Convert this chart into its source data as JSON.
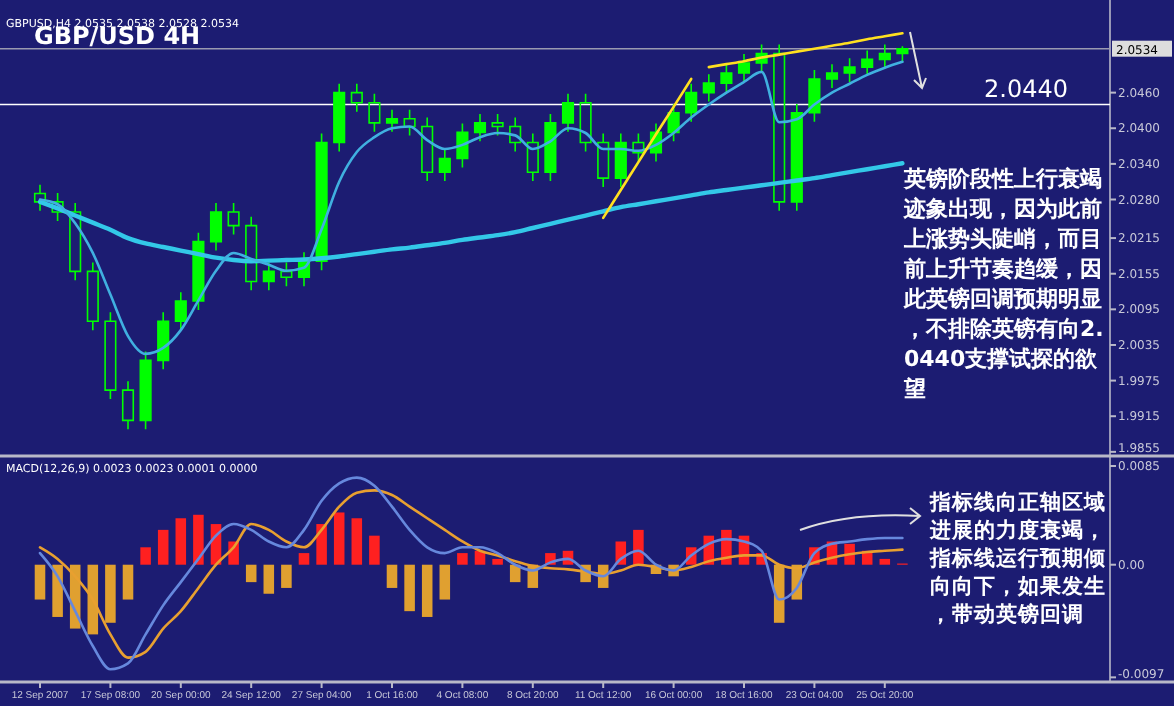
{
  "chart_data": [
    {
      "type": "candlestick",
      "title": "GBP/USD 4H",
      "annotations": [
        "GBPUSD,H4 2.0535 2.0538 2.0528 2.0534",
        "英镑阶段性上行衰竭迹象出现，因为此前上涨势头陡峭，而目前上升节奏趋缓，因此英镑回调预期明显，不排除英镑有向2.0440支撑试探的欲望"
      ],
      "categories": [
        null,
        null,
        null,
        null,
        null,
        null,
        null,
        null,
        null,
        null,
        null,
        null,
        null,
        null,
        null,
        null,
        null,
        null,
        null,
        null,
        null,
        null,
        null,
        null,
        null,
        null,
        null,
        null,
        null,
        null,
        null,
        null,
        null,
        null,
        null,
        null,
        null,
        null,
        null,
        null,
        null,
        null,
        null,
        null,
        null,
        null,
        null,
        null,
        null,
        null
      ],
      "color": "#00ff00",
      "ohlc": [
        [
          2.029,
          2.0305,
          2.0261,
          2.0276
        ],
        [
          2.0276,
          2.0291,
          2.0244,
          2.0259
        ],
        [
          2.0259,
          2.0274,
          2.0144,
          2.0159
        ],
        [
          2.0159,
          2.0174,
          2.006,
          2.0075
        ],
        [
          2.0075,
          2.009,
          1.9944,
          1.9959
        ],
        [
          1.9959,
          1.9974,
          1.9893,
          1.9908
        ],
        [
          1.9908,
          2.0024,
          1.9893,
          2.0009
        ],
        [
          2.0009,
          2.009,
          1.9994,
          2.0075
        ],
        [
          2.0075,
          2.0124,
          2.006,
          2.0109
        ],
        [
          2.0109,
          2.0224,
          2.0094,
          2.0209
        ],
        [
          2.0209,
          2.0274,
          2.0194,
          2.0259
        ],
        [
          2.0259,
          2.0274,
          2.0221,
          2.0236
        ],
        [
          2.0236,
          2.0251,
          2.0127,
          2.0142
        ],
        [
          2.0142,
          2.0174,
          2.0127,
          2.0159
        ],
        [
          2.0159,
          2.0174,
          2.0134,
          2.0149
        ],
        [
          2.0149,
          2.0191,
          2.0134,
          2.0176
        ],
        [
          2.0176,
          2.0391,
          2.0161,
          2.0376
        ],
        [
          2.0376,
          2.0475,
          2.0361,
          2.046
        ],
        [
          2.046,
          2.0475,
          2.0428,
          2.0443
        ],
        [
          2.0443,
          2.0458,
          2.0394,
          2.0409
        ],
        [
          2.0409,
          2.0431,
          2.0394,
          2.0416
        ],
        [
          2.0416,
          2.0431,
          2.0388,
          2.0403
        ],
        [
          2.0403,
          2.0418,
          2.0311,
          2.0326
        ],
        [
          2.0326,
          2.0364,
          2.0311,
          2.0349
        ],
        [
          2.0349,
          2.0408,
          2.0334,
          2.0393
        ],
        [
          2.0393,
          2.0424,
          2.0378,
          2.0409
        ],
        [
          2.0409,
          2.0424,
          2.0388,
          2.0403
        ],
        [
          2.0403,
          2.0418,
          2.0361,
          2.0376
        ],
        [
          2.0376,
          2.0391,
          2.0311,
          2.0326
        ],
        [
          2.0326,
          2.0424,
          2.0311,
          2.0409
        ],
        [
          2.0409,
          2.0458,
          2.0394,
          2.0443
        ],
        [
          2.0443,
          2.0458,
          2.0361,
          2.0376
        ],
        [
          2.0376,
          2.0391,
          2.0301,
          2.0316
        ],
        [
          2.0316,
          2.0391,
          2.0301,
          2.0376
        ],
        [
          2.0376,
          2.0391,
          2.0344,
          2.0359
        ],
        [
          2.0359,
          2.0408,
          2.0344,
          2.0393
        ],
        [
          2.0393,
          2.0441,
          2.0378,
          2.0426
        ],
        [
          2.0426,
          2.0475,
          2.0411,
          2.046
        ],
        [
          2.046,
          2.0491,
          2.0445,
          2.0476
        ],
        [
          2.0476,
          2.0508,
          2.0461,
          2.0493
        ],
        [
          2.0493,
          2.0525,
          2.0478,
          2.051
        ],
        [
          2.051,
          2.0541,
          2.0495,
          2.0526
        ],
        [
          2.0526,
          2.0541,
          2.0261,
          2.0276
        ],
        [
          2.0276,
          2.0441,
          2.0261,
          2.0426
        ],
        [
          2.0426,
          2.0498,
          2.0411,
          2.0483
        ],
        [
          2.0483,
          2.0508,
          2.0468,
          2.0493
        ],
        [
          2.0493,
          2.0518,
          2.0478,
          2.0503
        ],
        [
          2.0503,
          2.0531,
          2.0488,
          2.0516
        ],
        [
          2.0516,
          2.0541,
          2.0501,
          2.0526
        ],
        [
          2.0526,
          2.0538,
          2.0511,
          2.0534
        ]
      ],
      "series": [
        {
          "type": "line",
          "color": "#33c8e8",
          "values": [
            2.0276,
            2.0265,
            2.0253,
            2.0241,
            2.0229,
            2.0215,
            2.0206,
            2.02,
            2.0194,
            2.0188,
            2.0182,
            2.0178,
            2.0176,
            2.0177,
            2.0178,
            2.0179,
            2.0181,
            2.0184,
            2.0188,
            2.0192,
            2.0196,
            2.0199,
            2.0203,
            2.0207,
            2.0212,
            2.0216,
            2.022,
            2.0225,
            2.0232,
            2.0239,
            2.0246,
            2.0253,
            2.026,
            2.0267,
            2.0272,
            2.0277,
            2.0282,
            2.0287,
            2.0292,
            2.0296,
            2.03,
            2.0304,
            2.0308,
            2.0312,
            2.0316,
            2.0321,
            2.0326,
            2.0331,
            2.0336,
            2.0341
          ]
        },
        {
          "type": "line",
          "color": "#40b0e0",
          "values": [
            2.028,
            2.0272,
            2.024,
            2.019,
            2.012,
            2.005,
            2.002,
            2.003,
            2.006,
            2.011,
            2.016,
            2.019,
            2.018,
            2.017,
            2.016,
            2.0165,
            2.023,
            2.031,
            2.036,
            2.0385,
            2.04,
            2.0403,
            2.038,
            2.0365,
            2.0372,
            2.0385,
            2.0392,
            2.0388,
            2.0365,
            2.0378,
            2.04,
            2.0392,
            2.0365,
            2.0365,
            2.0362,
            2.0372,
            2.0392,
            2.0418,
            2.044,
            2.046,
            2.0478,
            2.0495,
            2.041,
            2.0415,
            2.044,
            2.046,
            2.0475,
            2.049,
            2.0502,
            2.0512
          ]
        },
        {
          "type": "line",
          "color": "#ffe020",
          "values": [
            null,
            null,
            null,
            null,
            null,
            null,
            null,
            null,
            null,
            null,
            null,
            null,
            null,
            null,
            null,
            null,
            null,
            null,
            null,
            null,
            null,
            null,
            null,
            null,
            null,
            null,
            null,
            null,
            null,
            null,
            null,
            null,
            2.0249,
            2.0296,
            2.0343,
            2.039,
            2.0436,
            2.0483,
            null,
            null,
            null,
            null,
            null,
            null,
            null,
            null,
            null,
            null,
            null,
            null
          ]
        },
        {
          "type": "line",
          "color": "#ffe020",
          "values": [
            null,
            null,
            null,
            null,
            null,
            null,
            null,
            null,
            null,
            null,
            null,
            null,
            null,
            null,
            null,
            null,
            null,
            null,
            null,
            null,
            null,
            null,
            null,
            null,
            null,
            null,
            null,
            null,
            null,
            null,
            null,
            null,
            null,
            null,
            null,
            null,
            null,
            null,
            2.0503,
            2.0508,
            2.0513,
            2.0519,
            2.0524,
            2.0529,
            2.0534,
            2.0539,
            2.0544,
            2.055,
            2.0555,
            2.056
          ]
        }
      ],
      "ref_lines": [
        {
          "axis": "y",
          "value": 2.044,
          "label": "2.0440",
          "color": "#ffffff"
        },
        {
          "axis": "y",
          "value": 2.0534,
          "label": "2.0534",
          "color": "#9a9ab0"
        }
      ],
      "ylim": [
        1.9848,
        2.0616
      ],
      "yticks": [
        1.9855,
        1.9915,
        1.9975,
        2.0035,
        2.0095,
        2.0155,
        2.0215,
        {
          "value": 2.028,
          "label": "2.0280"
        },
        {
          "value": 2.034,
          "label": "2.0340"
        },
        {
          "value": 2.04,
          "label": "2.0400"
        },
        {
          "value": 2.046,
          "label": "2.0460"
        }
      ],
      "tick_labels": "y"
    },
    {
      "type": "bar",
      "title": "MACD(12,26,9) 0.0023 0.0023 0.0001 0.0000",
      "annotations": [
        "指标线向正轴区域进展的力度衰竭，指标线运行预期倾向向下，如果发生，带动英镑回调"
      ],
      "categories": [
        "12 Sep 2007",
        null,
        null,
        null,
        "17 Sep 08:00",
        null,
        null,
        null,
        "20 Sep 00:00",
        null,
        null,
        null,
        "24 Sep 12:00",
        null,
        null,
        null,
        "27 Sep 04:00",
        null,
        null,
        null,
        "1 Oct 16:00",
        null,
        null,
        null,
        "4 Oct 08:00",
        null,
        null,
        null,
        "8 Oct 20:00",
        null,
        null,
        null,
        "11 Oct 12:00",
        null,
        null,
        null,
        "16 Oct 00:00",
        null,
        null,
        null,
        "18 Oct 16:00",
        null,
        null,
        null,
        "23 Oct 04:00",
        null,
        null,
        null,
        "25 Oct 20:00",
        null
      ],
      "series": [
        {
          "type": "bar",
          "colors": [
            "#e0a030",
            "#e0a030",
            "#e0a030",
            "#e0a030",
            "#e0a030",
            "#e0a030",
            "#ff2020",
            "#ff2020",
            "#ff2020",
            "#ff2020",
            "#ff2020",
            "#ff2020",
            "#e0a030",
            "#e0a030",
            "#e0a030",
            "#ff2020",
            "#ff2020",
            "#ff2020",
            "#ff2020",
            "#ff2020",
            "#e0a030",
            "#e0a030",
            "#e0a030",
            "#e0a030",
            "#ff2020",
            "#ff2020",
            "#ff2020",
            "#e0a030",
            "#e0a030",
            "#ff2020",
            "#ff2020",
            "#e0a030",
            "#e0a030",
            "#ff2020",
            "#ff2020",
            "#e0a030",
            "#e0a030",
            "#ff2020",
            "#ff2020",
            "#ff2020",
            "#ff2020",
            "#ff2020",
            "#e0a030",
            "#e0a030",
            "#ff2020",
            "#ff2020",
            "#ff2020",
            "#ff2020",
            "#ff2020",
            "#ff2020"
          ],
          "values": [
            -0.003,
            -0.0045,
            -0.0055,
            -0.006,
            -0.005,
            -0.003,
            0.0015,
            0.003,
            0.004,
            0.0043,
            0.0035,
            0.002,
            -0.0015,
            -0.0025,
            -0.002,
            0.001,
            0.0035,
            0.0045,
            0.004,
            0.0025,
            -0.002,
            -0.004,
            -0.0045,
            -0.003,
            0.001,
            0.0012,
            0.0005,
            -0.0015,
            -0.002,
            0.001,
            0.0012,
            -0.0015,
            -0.002,
            0.002,
            0.003,
            -0.0008,
            -0.001,
            0.0015,
            0.0025,
            0.003,
            0.0025,
            0.001,
            -0.005,
            -0.003,
            0.0015,
            0.002,
            0.0018,
            0.0012,
            0.0005,
            0.0001
          ]
        },
        {
          "type": "line",
          "color": "#e8a030",
          "values": [
            0.0015,
            0.0005,
            -0.001,
            -0.003,
            -0.006,
            -0.008,
            -0.0075,
            -0.0055,
            -0.004,
            -0.002,
            0.0,
            0.0015,
            0.0035,
            0.003,
            0.002,
            0.0015,
            0.003,
            0.005,
            0.0062,
            0.0064,
            0.006,
            0.005,
            0.004,
            0.003,
            0.002,
            0.0012,
            0.0008,
            0.0003,
            -0.0001,
            -0.0003,
            -0.0004,
            -0.0006,
            -0.0008,
            -0.0005,
            0.0,
            -0.0002,
            -0.0005,
            -0.0002,
            0.0003,
            0.0006,
            0.0008,
            0.0008,
            0.0,
            -0.0003,
            0.0002,
            0.0006,
            0.0009,
            0.0011,
            0.0012,
            0.0013
          ]
        },
        {
          "type": "line",
          "color": "#6688dd",
          "values": [
            0.001,
            -0.001,
            -0.004,
            -0.007,
            -0.009,
            -0.0085,
            -0.006,
            -0.0035,
            -0.0015,
            0.0005,
            0.0025,
            0.0035,
            0.003,
            0.002,
            0.0015,
            0.003,
            0.0055,
            0.007,
            0.0075,
            0.0068,
            0.005,
            0.003,
            0.0015,
            0.001,
            0.0015,
            0.0015,
            0.001,
            0.0,
            -0.0005,
            0.0002,
            0.0005,
            -0.0005,
            -0.001,
            0.0005,
            0.0012,
            0.0,
            -0.0005,
            0.0008,
            0.0018,
            0.0022,
            0.002,
            0.0012,
            -0.003,
            -0.002,
            0.001,
            0.0018,
            0.002,
            0.0022,
            0.0023,
            0.0023
          ]
        }
      ],
      "ylim": [
        -0.0101,
        0.0085
      ],
      "yticks": [
        0.0085,
        {
          "value": 0,
          "label": "0.00"
        },
        -0.0097
      ]
    }
  ]
}
